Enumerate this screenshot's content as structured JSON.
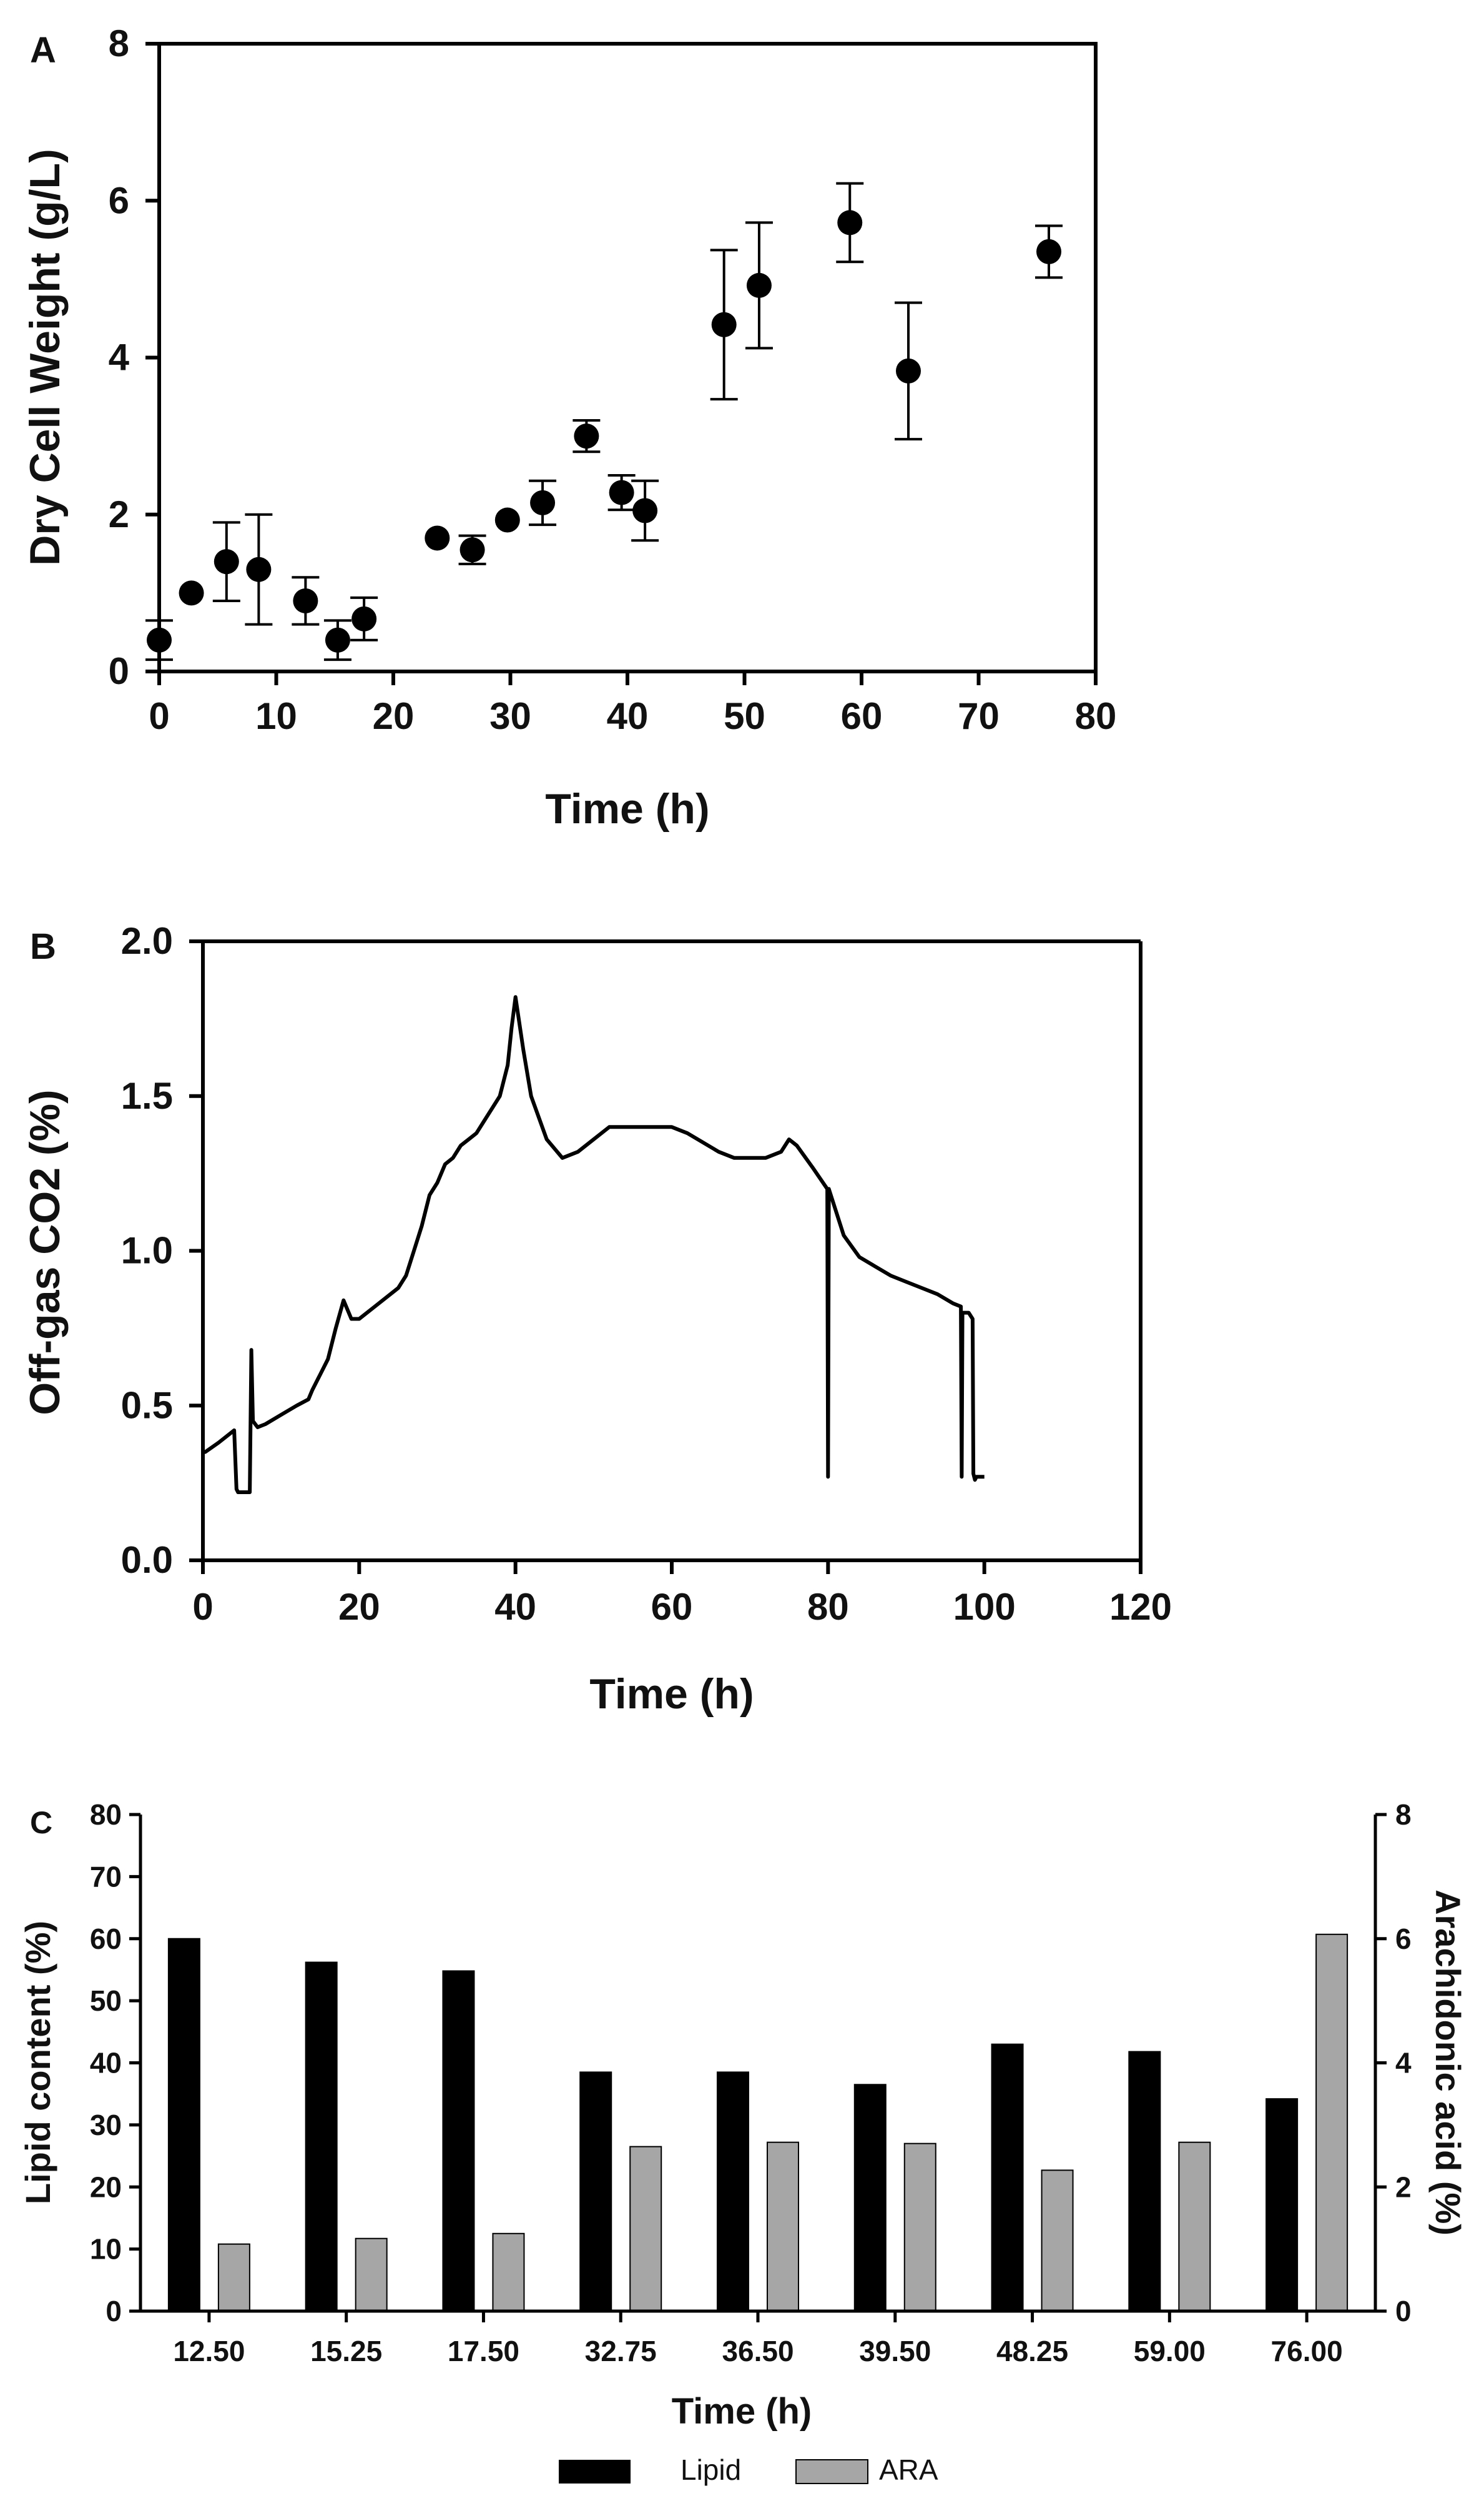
{
  "panels": {
    "a": {
      "letter": "A"
    },
    "b": {
      "letter": "B"
    },
    "c": {
      "letter": "C"
    }
  },
  "chart_data": [
    {
      "id": "a",
      "type": "scatter",
      "title": "",
      "xlabel": "Time (h)",
      "ylabel": "Dry Cell Weight (g/L)",
      "xlim": [
        0,
        80
      ],
      "ylim": [
        0,
        8
      ],
      "xticks": [
        "0",
        "10",
        "20",
        "30",
        "40",
        "50",
        "60",
        "70",
        "80"
      ],
      "yticks": [
        "0",
        "2",
        "4",
        "6",
        "8"
      ],
      "series": [
        {
          "name": "Dry Cell Weight",
          "points": [
            {
              "x": 0,
              "y": 0.4,
              "err": 0.25
            },
            {
              "x": 2.75,
              "y": 1.0,
              "err": 0
            },
            {
              "x": 5.75,
              "y": 1.4,
              "err": 0.5
            },
            {
              "x": 8.5,
              "y": 1.3,
              "err": 0.7
            },
            {
              "x": 12.5,
              "y": 0.9,
              "err": 0.3
            },
            {
              "x": 15.25,
              "y": 0.4,
              "err": 0.25
            },
            {
              "x": 17.5,
              "y": 0.67,
              "err": 0.27
            },
            {
              "x": 23.75,
              "y": 1.7,
              "err": 0
            },
            {
              "x": 26.75,
              "y": 1.55,
              "err": 0.18
            },
            {
              "x": 29.75,
              "y": 1.93,
              "err": 0
            },
            {
              "x": 32.75,
              "y": 2.15,
              "err": 0.28
            },
            {
              "x": 36.5,
              "y": 3.0,
              "err": 0.2
            },
            {
              "x": 39.5,
              "y": 2.28,
              "err": 0.22
            },
            {
              "x": 41.5,
              "y": 2.05,
              "err": 0.38
            },
            {
              "x": 48.25,
              "y": 4.42,
              "err": 0.95
            },
            {
              "x": 51.25,
              "y": 4.92,
              "err": 0.8
            },
            {
              "x": 59.0,
              "y": 5.72,
              "err": 0.5
            },
            {
              "x": 64.0,
              "y": 3.83,
              "err": 0.87
            },
            {
              "x": 76.0,
              "y": 5.35,
              "err": 0.33
            }
          ]
        }
      ]
    },
    {
      "id": "b",
      "type": "line",
      "title": "",
      "xlabel": "Time (h)",
      "ylabel": "Off-gas CO2 (%)",
      "xlim": [
        0,
        120
      ],
      "ylim": [
        0,
        2
      ],
      "xticks": [
        "0",
        "20",
        "40",
        "60",
        "80",
        "100",
        "120"
      ],
      "yticks": [
        "0.0",
        "0.5",
        "1.0",
        "1.5",
        "2.0"
      ],
      "series": [
        {
          "name": "Off-gas CO2",
          "x": [
            0,
            0.3,
            2,
            4,
            4.3,
            4.5,
            6,
            6.2,
            6.4,
            7,
            8,
            10,
            12,
            13.5,
            14,
            15,
            16,
            17,
            18,
            19,
            20,
            22,
            25,
            26,
            27,
            28,
            29,
            30,
            31,
            32,
            33,
            34,
            35,
            36,
            37,
            38,
            39,
            39.5,
            40,
            41,
            42,
            44,
            46,
            48,
            50,
            52,
            55,
            58,
            60,
            62,
            64,
            66,
            68,
            70,
            72,
            74,
            75,
            76,
            78,
            79.9,
            80,
            80.1,
            82,
            84,
            86,
            88,
            90,
            92,
            94,
            96,
            97,
            97.1,
            97.2,
            98,
            98.5,
            98.6,
            98.8,
            99,
            100
          ],
          "y": [
            0.35,
            0.35,
            0.38,
            0.42,
            0.23,
            0.22,
            0.22,
            0.68,
            0.45,
            0.43,
            0.44,
            0.47,
            0.5,
            0.52,
            0.55,
            0.6,
            0.65,
            0.75,
            0.84,
            0.78,
            0.78,
            0.82,
            0.88,
            0.92,
            1.0,
            1.08,
            1.18,
            1.22,
            1.28,
            1.3,
            1.34,
            1.36,
            1.38,
            1.42,
            1.46,
            1.5,
            1.6,
            1.72,
            1.82,
            1.65,
            1.5,
            1.36,
            1.3,
            1.32,
            1.36,
            1.4,
            1.4,
            1.4,
            1.4,
            1.38,
            1.35,
            1.32,
            1.3,
            1.3,
            1.3,
            1.32,
            1.36,
            1.34,
            1.27,
            1.2,
            0.27,
            1.2,
            1.05,
            0.98,
            0.95,
            0.92,
            0.9,
            0.88,
            0.86,
            0.83,
            0.82,
            0.27,
            0.8,
            0.8,
            0.78,
            0.28,
            0.26,
            0.27,
            0.27
          ]
        }
      ]
    },
    {
      "id": "c",
      "type": "bar",
      "title": "",
      "xlabel": "Time (h)",
      "ylabel": "Lipid content (%)",
      "y2label": "Arachidonic acid (%)",
      "ylim": [
        0,
        80
      ],
      "y2lim": [
        0,
        8
      ],
      "categories": [
        "12.50",
        "15.25",
        "17.50",
        "32.75",
        "36.50",
        "39.50",
        "48.25",
        "59.00",
        "76.00"
      ],
      "yticks": [
        "0",
        "10",
        "20",
        "30",
        "40",
        "50",
        "60",
        "70",
        "80"
      ],
      "y2ticks": [
        "0",
        "2",
        "4",
        "6",
        "8"
      ],
      "series": [
        {
          "name": "Lipid",
          "axis": "left",
          "color": "#000000",
          "values": [
            60,
            56.2,
            54.8,
            38.5,
            38.5,
            36.5,
            43,
            41.8,
            34.2
          ]
        },
        {
          "name": "ARA",
          "axis": "right",
          "color": "#a6a6a6",
          "values": [
            1.08,
            1.17,
            1.25,
            2.65,
            2.72,
            2.7,
            2.27,
            2.72,
            6.07
          ]
        }
      ],
      "legend": [
        "Lipid",
        "ARA"
      ]
    }
  ]
}
